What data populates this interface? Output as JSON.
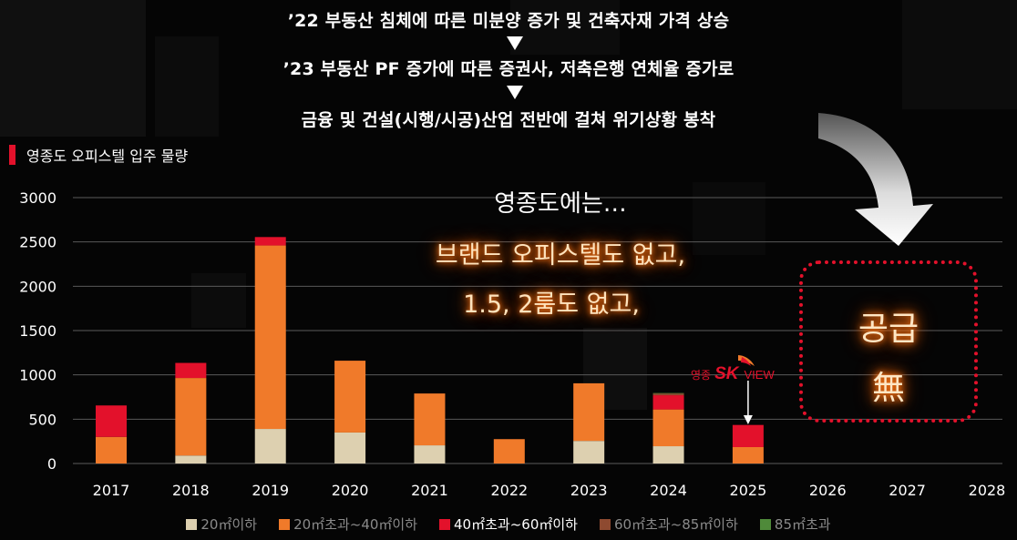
{
  "headlines": [
    "’22 부동산 침체에 따른 미분양 증가 및 건축자재 가격 상승",
    "’23 부동산 PF 증가에 따른 증권사, 저축은행 연체율 증가로",
    "금융 및 건설(시행/시공)산업 전반에 걸쳐 위기상황 봉착"
  ],
  "section_title": "영종도 오피스텔 입주 물량",
  "overlay": {
    "line1": "영종도에는…",
    "line2": "브랜드 오피스텔도 없고,",
    "line3": "1.5, 2룸도 없고,"
  },
  "supply_box": {
    "line1": "공급",
    "line2": "無"
  },
  "logo": {
    "prefix": "영종",
    "brand": "SK",
    "suffix": "VIEW"
  },
  "colors": {
    "under20": "#ddd0b0",
    "20to40": "#f07a2a",
    "40to60": "#e3112b",
    "60to85": "#8e4a30",
    "over85": "#4f8a3a",
    "accent": "#e3112b"
  },
  "chart_data": {
    "type": "bar",
    "stacked": true,
    "categories": [
      "2017",
      "2018",
      "2019",
      "2020",
      "2021",
      "2022",
      "2023",
      "2024",
      "2025",
      "2026",
      "2027",
      "2028"
    ],
    "series": [
      {
        "name": "20㎡이하",
        "values": [
          0,
          90,
          390,
          350,
          205,
          0,
          255,
          195,
          0,
          0,
          0,
          0
        ]
      },
      {
        "name": "20㎡초과~40㎡이하",
        "values": [
          300,
          875,
          2070,
          810,
          585,
          275,
          650,
          415,
          185,
          0,
          0,
          0
        ]
      },
      {
        "name": "40㎡초과~60㎡이하",
        "values": [
          355,
          170,
          95,
          0,
          0,
          0,
          0,
          160,
          250,
          0,
          0,
          0
        ]
      },
      {
        "name": "60㎡초과~85㎡이하",
        "values": [
          0,
          0,
          0,
          0,
          0,
          0,
          0,
          20,
          0,
          0,
          0,
          0
        ]
      },
      {
        "name": "85㎡초과",
        "values": [
          0,
          0,
          0,
          0,
          0,
          0,
          0,
          5,
          0,
          0,
          0,
          0
        ]
      }
    ],
    "yticks": [
      "0",
      "500",
      "1000",
      "1500",
      "2000",
      "2500",
      "3000"
    ],
    "ylim": [
      0,
      3000
    ],
    "grid": true,
    "legend": "bottom"
  }
}
